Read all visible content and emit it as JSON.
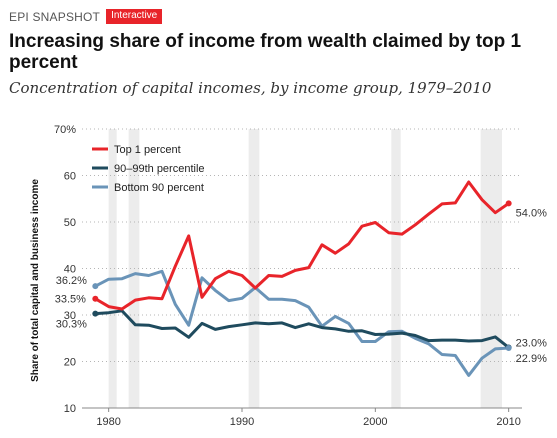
{
  "header": {
    "brand": "EPI SNAPSHOT",
    "badge": "Interactive"
  },
  "chart_data": {
    "type": "line",
    "title": "Increasing share of income from wealth claimed by top 1 percent",
    "subtitle": "Concentration of capital incomes, by income group, 1979–2010",
    "xlabel": "",
    "ylabel": "Share of total capital and business income",
    "xlim": [
      1978,
      2011
    ],
    "ylim": [
      10,
      70
    ],
    "xticks": [
      1980,
      1990,
      2000,
      2010
    ],
    "yticks": [
      10,
      20,
      30,
      40,
      50,
      60,
      70
    ],
    "ytick_labels": [
      "10",
      "20",
      "30",
      "40",
      "50",
      "60",
      "70%"
    ],
    "grid": "horizontal-dotted",
    "recession_bands": [
      [
        1980.0,
        1980.6
      ],
      [
        1981.5,
        1982.3
      ],
      [
        1990.5,
        1991.3
      ],
      [
        2001.2,
        2001.9
      ],
      [
        2007.9,
        2009.5
      ]
    ],
    "legend_position": "top-left",
    "x": [
      1979,
      1980,
      1981,
      1982,
      1983,
      1984,
      1985,
      1986,
      1987,
      1988,
      1989,
      1990,
      1991,
      1992,
      1993,
      1994,
      1995,
      1996,
      1997,
      1998,
      1999,
      2000,
      2001,
      2002,
      2003,
      2004,
      2005,
      2006,
      2007,
      2008,
      2009,
      2010
    ],
    "series": [
      {
        "name": "Top 1 percent",
        "color": "#e8242a",
        "values": [
          33.5,
          31.8,
          31.3,
          33.2,
          33.7,
          33.5,
          40.5,
          47.0,
          33.8,
          37.8,
          39.4,
          38.5,
          35.8,
          38.5,
          38.3,
          39.6,
          40.2,
          45.1,
          43.3,
          45.3,
          49.1,
          49.9,
          47.7,
          47.4,
          49.4,
          51.7,
          53.9,
          54.1,
          58.6,
          54.8,
          52.0,
          54.0
        ],
        "end_label": "54.0%",
        "start_label": "33.5%"
      },
      {
        "name": "90–99th percentile",
        "color": "#1f4b5e",
        "values": [
          30.3,
          30.5,
          30.9,
          27.9,
          27.8,
          27.1,
          27.2,
          25.2,
          28.2,
          26.9,
          27.5,
          27.9,
          28.3,
          28.1,
          28.3,
          27.3,
          28.1,
          27.3,
          27.0,
          26.5,
          26.6,
          25.8,
          25.9,
          26.1,
          25.6,
          24.5,
          24.6,
          24.6,
          24.4,
          24.5,
          25.3,
          23.0
        ],
        "end_label": "23.0%",
        "start_label": "30.3%"
      },
      {
        "name": "Bottom 90 percent",
        "color": "#6a94b8",
        "values": [
          36.2,
          37.7,
          37.8,
          38.9,
          38.5,
          39.4,
          32.3,
          27.8,
          38.0,
          35.3,
          33.1,
          33.6,
          35.9,
          33.4,
          33.4,
          33.1,
          31.7,
          27.6,
          29.7,
          28.2,
          24.3,
          24.3,
          26.4,
          26.5,
          25.0,
          23.8,
          21.5,
          21.3,
          17.0,
          20.7,
          22.7,
          22.9
        ],
        "end_label": "22.9%",
        "start_label": "36.2%"
      }
    ]
  }
}
